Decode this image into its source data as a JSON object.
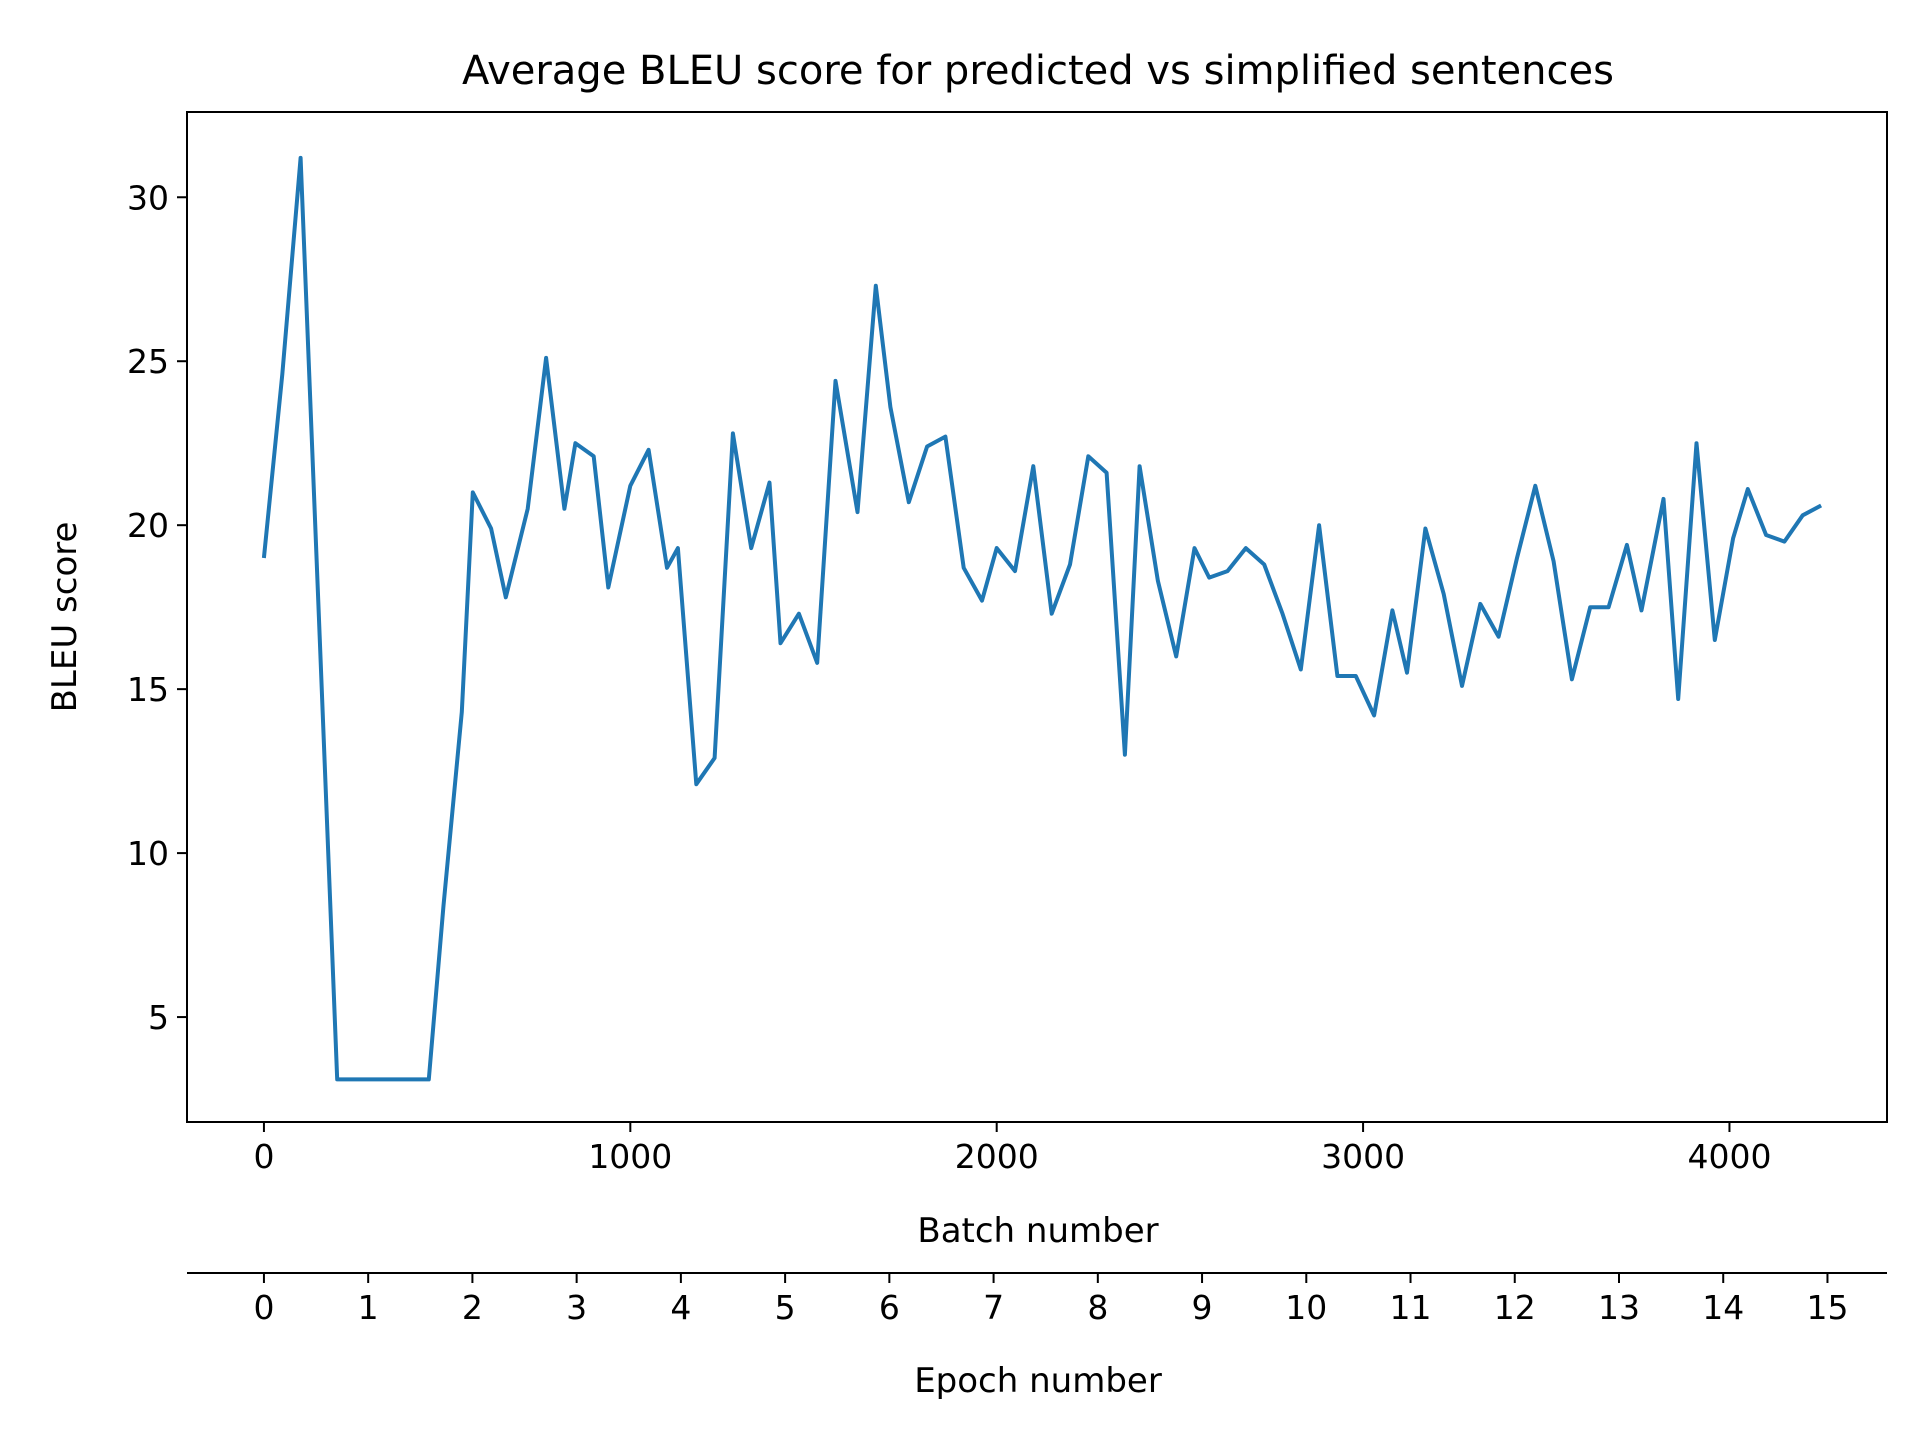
{
  "chart_data": {
    "type": "line",
    "title": "Average BLEU score for predicted vs simplified sentences",
    "xlabel": "Batch number",
    "ylabel": "BLEU score",
    "x2label": "Epoch number",
    "xlim": [
      -210,
      4430
    ],
    "ylim": [
      1.8,
      32.6
    ],
    "xticks": [
      0,
      1000,
      2000,
      3000,
      4000
    ],
    "yticks": [
      5,
      10,
      15,
      20,
      25,
      30
    ],
    "x2ticks": [
      0,
      1,
      2,
      3,
      4,
      5,
      6,
      7,
      8,
      9,
      10,
      11,
      12,
      13,
      14,
      15
    ],
    "x2_batches_per_epoch": 284.5,
    "grid": false,
    "legend": "none",
    "line_color": "#1f77b4",
    "series": [
      {
        "x": [
          0,
          50,
          100,
          150,
          200,
          250,
          300,
          350,
          400,
          450,
          490,
          540,
          570,
          620,
          660,
          720,
          770,
          820,
          850,
          900,
          940,
          1000,
          1050,
          1100,
          1130,
          1180,
          1230,
          1280,
          1330,
          1380,
          1410,
          1460,
          1510,
          1560,
          1620,
          1670,
          1710,
          1760,
          1810,
          1860,
          1910,
          1960,
          2000,
          2050,
          2100,
          2150,
          2200,
          2250,
          2300,
          2350,
          2390,
          2440,
          2490,
          2540,
          2580,
          2630,
          2680,
          2730,
          2780,
          2830,
          2880,
          2930,
          2980,
          3030,
          3080,
          3120,
          3170,
          3220,
          3270,
          3320,
          3370,
          3420,
          3470,
          3520,
          3570,
          3620,
          3670,
          3720,
          3760,
          3820,
          3860,
          3910,
          3960,
          4010,
          4050,
          4100,
          4150,
          4200,
          4250
        ],
        "values": [
          19.0,
          24.6,
          31.2,
          17.2,
          3.1,
          3.1,
          3.1,
          3.1,
          3.1,
          3.1,
          8.4,
          14.3,
          21.0,
          19.9,
          17.8,
          20.5,
          25.1,
          20.5,
          22.5,
          22.1,
          18.1,
          21.2,
          22.3,
          18.7,
          19.3,
          12.1,
          12.9,
          22.8,
          19.3,
          21.3,
          16.4,
          17.3,
          15.8,
          24.4,
          20.4,
          27.3,
          23.6,
          20.7,
          22.4,
          22.7,
          18.7,
          17.7,
          19.3,
          18.6,
          21.8,
          17.3,
          18.8,
          22.1,
          21.6,
          13.0,
          21.8,
          18.3,
          16.0,
          19.3,
          18.4,
          18.6,
          19.3,
          18.8,
          17.3,
          15.6,
          20.0,
          15.4,
          15.4,
          14.2,
          17.4,
          15.5,
          19.9,
          17.9,
          15.1,
          17.6,
          16.6,
          19.0,
          21.2,
          18.9,
          15.3,
          17.5,
          17.5,
          19.4,
          17.4,
          20.8,
          14.7,
          22.5,
          16.5,
          19.6,
          21.1,
          19.7,
          19.5,
          20.3,
          20.6
        ]
      }
    ]
  }
}
